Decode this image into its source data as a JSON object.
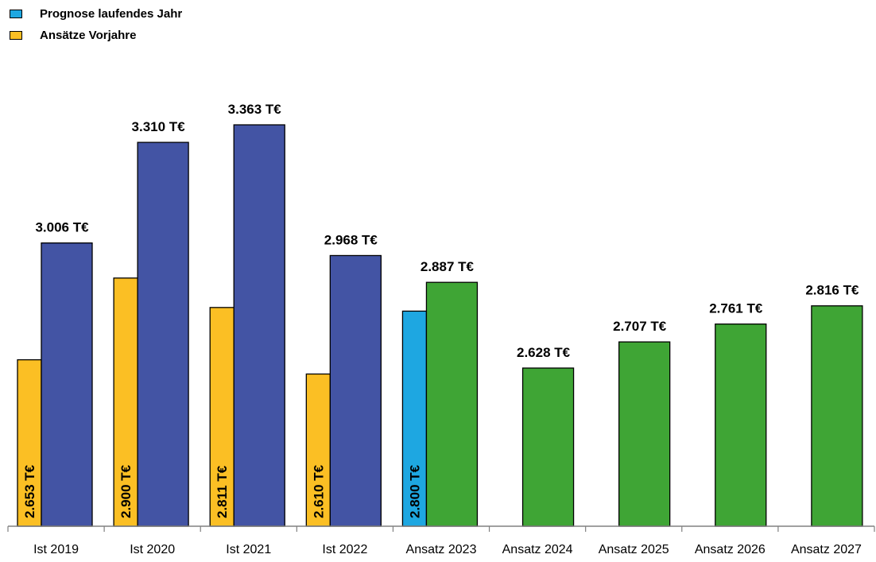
{
  "legend": {
    "items": [
      {
        "label": "Prognose laufendes Jahr",
        "color": "#1ea7e1"
      },
      {
        "label": "Ansätze Vorjahre",
        "color": "#fbbf24"
      }
    ]
  },
  "colors": {
    "ist": "#4354a4",
    "ansatz": "#3fa535",
    "prognose": "#1ea7e1",
    "vorjahr": "#fbbf24"
  },
  "chart_data": {
    "type": "bar",
    "categories": [
      "Ist 2019",
      "Ist 2020",
      "Ist 2021",
      "Ist 2022",
      "Ansatz 2023",
      "Ansatz 2024",
      "Ansatz 2025",
      "Ansatz 2026",
      "Ansatz 2027"
    ],
    "series": [
      {
        "name": "Ansätze Vorjahre",
        "values": [
          2653,
          2900,
          2811,
          2610,
          null,
          null,
          null,
          null,
          null
        ],
        "labels": [
          "2.653 T€",
          "2.900 T€",
          "2.811 T€",
          "2.610 T€",
          null,
          null,
          null,
          null,
          null
        ]
      },
      {
        "name": "Prognose laufendes Jahr",
        "values": [
          null,
          null,
          null,
          null,
          2800,
          null,
          null,
          null,
          null
        ],
        "labels": [
          null,
          null,
          null,
          null,
          "2.800 T€",
          null,
          null,
          null,
          null
        ]
      },
      {
        "values": [
          3006,
          3310,
          3363,
          2968,
          2887,
          2628,
          2707,
          2761,
          2816
        ],
        "labels": [
          "3.006 T€",
          "3.310 T€",
          "3.363 T€",
          "2.968 T€",
          "2.887 T€",
          "2.628 T€",
          "2.707 T€",
          "2.761 T€",
          "2.816 T€"
        ],
        "kinds": [
          "ist",
          "ist",
          "ist",
          "ist",
          "ansatz",
          "ansatz",
          "ansatz",
          "ansatz",
          "ansatz"
        ]
      }
    ],
    "xlabel": "",
    "ylabel": "",
    "ylim": [
      0,
      3500
    ],
    "grid": false,
    "legend_position": "top-left"
  }
}
